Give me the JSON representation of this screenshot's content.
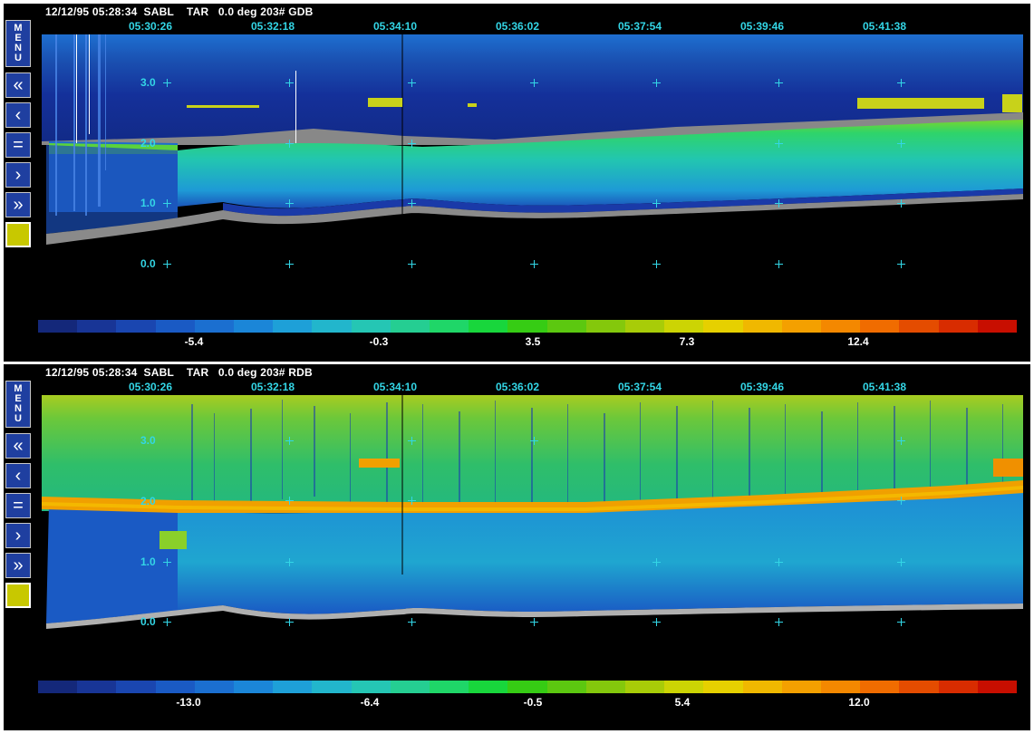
{
  "panels": [
    {
      "id": "gdb",
      "header": "12/12/95 05:28:34  SABL    TAR   0.0 deg 203# GDB",
      "times": [
        "05:30:26",
        "05:32:18",
        "05:34:10",
        "05:36:02",
        "05:37:54",
        "05:39:46",
        "05:41:38"
      ],
      "y_labels": [
        "3.0",
        "2.0",
        "1.0",
        "0.0"
      ],
      "colorbar_ticks": [
        "-5.4",
        "-0.3",
        "3.5",
        "7.3",
        "12.4"
      ]
    },
    {
      "id": "rdb",
      "header": "12/12/95 05:28:34  SABL    TAR   0.0 deg 203# RDB",
      "times": [
        "05:30:26",
        "05:32:18",
        "05:34:10",
        "05:36:02",
        "05:37:54",
        "05:39:46",
        "05:41:38"
      ],
      "y_labels": [
        "3.0",
        "2.0",
        "1.0",
        "0.0"
      ],
      "colorbar_ticks": [
        "-13.0",
        "-6.4",
        "-0.5",
        "5.4",
        "12.0"
      ]
    }
  ],
  "toolbar": {
    "menu_label": "MENU",
    "buttons": [
      {
        "name": "rewind-fast-icon",
        "glyph": "«"
      },
      {
        "name": "rewind-icon",
        "glyph": "‹"
      },
      {
        "name": "pause-icon",
        "glyph": "="
      },
      {
        "name": "forward-icon",
        "glyph": "›"
      },
      {
        "name": "forward-fast-icon",
        "glyph": "»"
      }
    ]
  },
  "colors": {
    "accent_text": "#33d6e6",
    "button_bg": "#1f3fa0",
    "swatch": "#c8c800",
    "colorbar": [
      "#14287a",
      "#183596",
      "#1a46b0",
      "#1a5ac4",
      "#1b6fd0",
      "#1b86d8",
      "#1ea0d8",
      "#22b6cc",
      "#25c6b4",
      "#25ce92",
      "#1fd668",
      "#18d63c",
      "#36cc14",
      "#5cc810",
      "#84c80c",
      "#a8cc08",
      "#ccd404",
      "#e6d000",
      "#f0b800",
      "#f4a000",
      "#f48800",
      "#f06c00",
      "#e44c00",
      "#d82c00",
      "#c80e00"
    ]
  }
}
